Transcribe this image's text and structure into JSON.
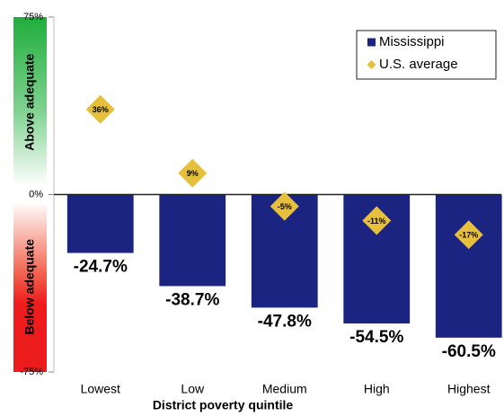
{
  "chart_data": {
    "type": "bar",
    "x_label": "District poverty quintile",
    "categories": [
      "Lowest",
      "Low",
      "Medium",
      "High",
      "Highest"
    ],
    "series": [
      {
        "name": "Mississippi",
        "color": "#1b2581",
        "marker": "bar",
        "values": [
          -24.7,
          -38.7,
          -47.8,
          -54.5,
          -60.5
        ],
        "value_labels": [
          "-24.7%",
          "-38.7%",
          "-47.8%",
          "-54.5%",
          "-60.5%"
        ]
      },
      {
        "name": "U.S. average",
        "color": "#e6c03c",
        "marker": "diamond",
        "values": [
          36,
          9,
          -5,
          -11,
          -17
        ],
        "value_labels": [
          "36%",
          "9%",
          "-5%",
          "-11%",
          "-17%"
        ]
      }
    ],
    "ylim": [
      -75,
      75
    ],
    "yticks": [
      {
        "value": -75,
        "label": "-75%"
      },
      {
        "value": 0,
        "label": "0%"
      },
      {
        "value": 75,
        "label": "75%"
      }
    ],
    "annotations": [
      "Above adequate",
      "Below adequate"
    ],
    "legend": "upper right"
  }
}
